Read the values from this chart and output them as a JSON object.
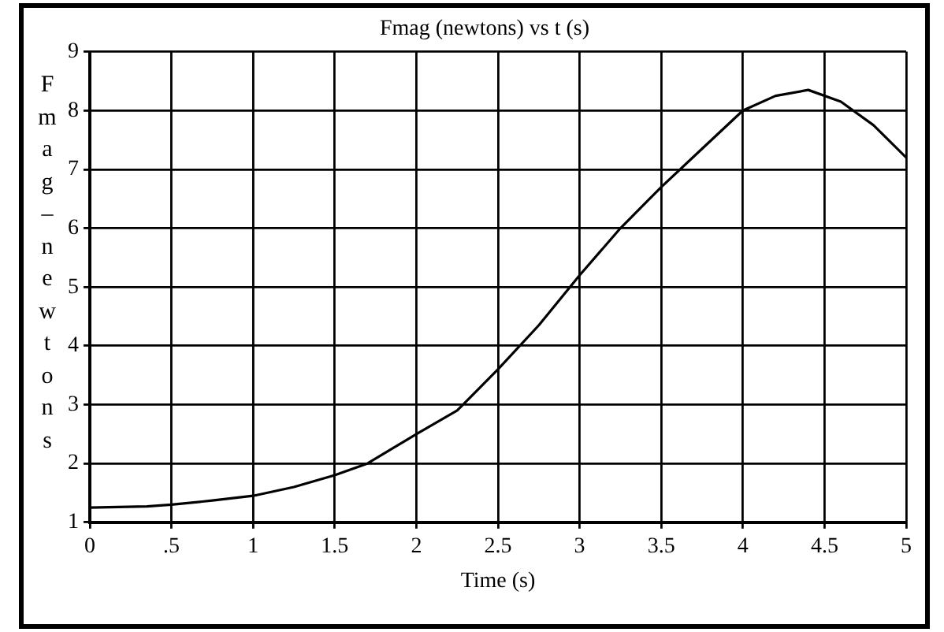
{
  "chart_data": {
    "type": "line",
    "title": "Fmag (newtons) vs t (s)",
    "xlabel": "Time (s)",
    "ylabel": "Fmag–newtons",
    "x": [
      0,
      0.35,
      0.5,
      0.75,
      1,
      1.25,
      1.5,
      1.7,
      2,
      2.25,
      2.5,
      2.75,
      3,
      3.25,
      3.5,
      3.75,
      4,
      4.2,
      4.4,
      4.6,
      4.8,
      5
    ],
    "series": [
      {
        "color": "#000000",
        "values": [
          1.25,
          1.27,
          1.3,
          1.37,
          1.45,
          1.6,
          1.8,
          2.0,
          2.5,
          2.9,
          3.6,
          4.35,
          5.2,
          6.0,
          6.7,
          7.35,
          8.0,
          8.25,
          8.35,
          8.15,
          7.75,
          7.2
        ]
      }
    ],
    "xlim": [
      0,
      5
    ],
    "xticks": [
      0,
      {
        "value": 0.5,
        "label": ".5"
      },
      1,
      1.5,
      2,
      2.5,
      3,
      3.5,
      4,
      4.5,
      5
    ],
    "ylim": [
      1,
      9
    ],
    "yticks": [
      1,
      2,
      3,
      4,
      5,
      6,
      7,
      8,
      9
    ],
    "grid": true,
    "legend": false,
    "marker": "none",
    "line_style": "solid"
  }
}
